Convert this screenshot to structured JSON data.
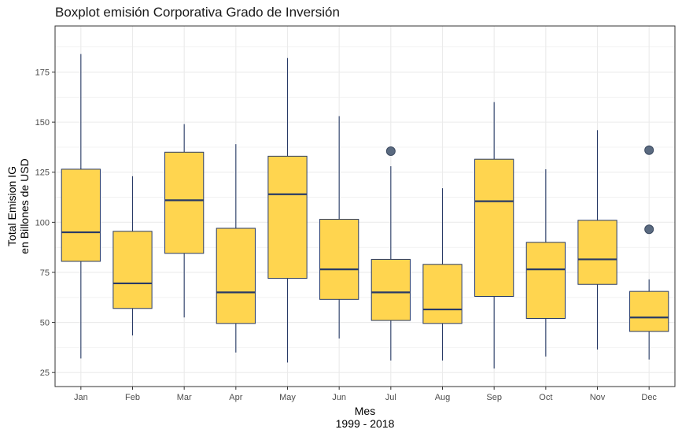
{
  "chart_data": {
    "type": "boxplot",
    "title": "Boxplot emisión Corporativa Grado de Inversión",
    "xlabel": "Mes",
    "xlabel_sub": "1999 - 2018",
    "ylabel": "Total Emision IG",
    "ylabel_sub": "en Billones de USD",
    "ylim": [
      18,
      198
    ],
    "yticks": [
      25,
      50,
      75,
      100,
      125,
      150,
      175
    ],
    "grid": true,
    "colors": {
      "box_fill": "#FFD54F",
      "box_line": "#283a66",
      "outlier": "#5a6a80",
      "grid": "#ebebeb",
      "border": "#333333"
    },
    "categories": [
      "Jan",
      "Feb",
      "Mar",
      "Apr",
      "May",
      "Jun",
      "Jul",
      "Aug",
      "Sep",
      "Oct",
      "Nov",
      "Dec"
    ],
    "boxes": [
      {
        "min": 32,
        "q1": 80.5,
        "median": 95,
        "q3": 126.5,
        "max": 184,
        "outliers": []
      },
      {
        "min": 43.5,
        "q1": 57,
        "median": 69.5,
        "q3": 95.5,
        "max": 123,
        "outliers": []
      },
      {
        "min": 52.5,
        "q1": 84.5,
        "median": 111,
        "q3": 135,
        "max": 149,
        "outliers": []
      },
      {
        "min": 35,
        "q1": 49.5,
        "median": 65,
        "q3": 97,
        "max": 139,
        "outliers": []
      },
      {
        "min": 30,
        "q1": 72,
        "median": 114,
        "q3": 133,
        "max": 182,
        "outliers": []
      },
      {
        "min": 42,
        "q1": 61.5,
        "median": 76.5,
        "q3": 101.5,
        "max": 153,
        "outliers": []
      },
      {
        "min": 31,
        "q1": 51,
        "median": 65,
        "q3": 81.5,
        "max": 128,
        "outliers": [
          135.5
        ]
      },
      {
        "min": 31,
        "q1": 49.5,
        "median": 56.5,
        "q3": 79,
        "max": 117,
        "outliers": []
      },
      {
        "min": 27,
        "q1": 63,
        "median": 110.5,
        "q3": 131.5,
        "max": 160,
        "outliers": []
      },
      {
        "min": 33,
        "q1": 52,
        "median": 76.5,
        "q3": 90,
        "max": 126.5,
        "outliers": []
      },
      {
        "min": 36.5,
        "q1": 69,
        "median": 81.5,
        "q3": 101,
        "max": 146,
        "outliers": []
      },
      {
        "min": 31.5,
        "q1": 45.5,
        "median": 52.5,
        "q3": 65.5,
        "max": 71.5,
        "outliers": [
          96.5,
          136
        ]
      }
    ]
  }
}
